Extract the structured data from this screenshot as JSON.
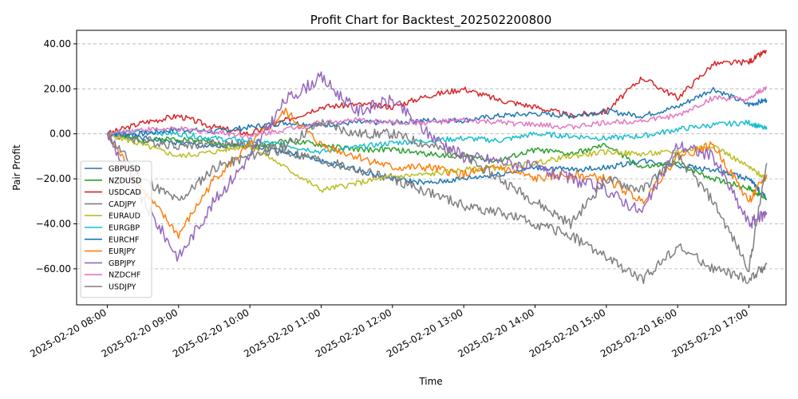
{
  "chart_data": {
    "type": "line",
    "title": "Profit Chart for Backtest_202502200800",
    "xlabel": "Time",
    "ylabel": "Pair Profit",
    "x_ticks": [
      "2025-02-20 08:00",
      "2025-02-20 09:00",
      "2025-02-20 10:00",
      "2025-02-20 11:00",
      "2025-02-20 12:00",
      "2025-02-20 13:00",
      "2025-02-20 14:00",
      "2025-02-20 15:00",
      "2025-02-20 16:00",
      "2025-02-20 17:00"
    ],
    "x": [
      "08:00",
      "08:30",
      "09:00",
      "09:30",
      "10:00",
      "10:30",
      "11:00",
      "11:30",
      "12:00",
      "12:30",
      "13:00",
      "13:30",
      "14:00",
      "14:30",
      "15:00",
      "15:30",
      "16:00",
      "16:30",
      "17:00",
      "17:15"
    ],
    "y_ticks": [
      "40.00",
      "20.00",
      "0.00",
      "−20.00",
      "−40.00",
      "−60.00"
    ],
    "y_tick_values": [
      40,
      20,
      0,
      -20,
      -40,
      -60
    ],
    "ylim": [
      -76,
      46
    ],
    "xlim_hours": [
      7.57,
      17.52
    ],
    "grid": "y-dashed",
    "legend_position": "lower-left",
    "series": [
      {
        "name": "GBPUSD",
        "color": "#1f77b4",
        "values": [
          0,
          -2,
          -4,
          -6,
          -5,
          -8,
          -12,
          -16,
          -20,
          -22,
          -20,
          -18,
          -15,
          -16,
          -15,
          -12,
          -14,
          -16,
          -20,
          -29
        ]
      },
      {
        "name": "NZDUSD",
        "color": "#2ca02c",
        "values": [
          0,
          -3,
          -2,
          -4,
          -6,
          -3,
          -5,
          -7,
          -7,
          -9,
          -10,
          -12,
          -7,
          -9,
          -5,
          -15,
          -13,
          -20,
          -24,
          -29
        ]
      },
      {
        "name": "USDCAD",
        "color": "#d62728",
        "values": [
          0,
          5,
          8,
          3,
          0,
          6,
          12,
          13,
          12,
          17,
          20,
          15,
          12,
          8,
          10,
          25,
          16,
          31,
          32,
          37
        ]
      },
      {
        "name": "CADJPY",
        "color": "#7f7f7f",
        "values": [
          0,
          -3,
          -5,
          -4,
          -5,
          -8,
          -12,
          -16,
          -20,
          -26,
          -32,
          -35,
          -40,
          -45,
          -55,
          -65,
          -50,
          -60,
          -65,
          -58
        ]
      },
      {
        "name": "EURAUD",
        "color": "#bcbd22",
        "values": [
          0,
          -5,
          -10,
          -8,
          -5,
          -15,
          -25,
          -22,
          -19,
          -18,
          -16,
          -15,
          -13,
          -10,
          -8,
          -9,
          -8,
          -5,
          -15,
          -20
        ]
      },
      {
        "name": "EURGBP",
        "color": "#17becf",
        "values": [
          0,
          1,
          0,
          -2,
          -3,
          -5,
          -8,
          -6,
          -4,
          -3,
          -2,
          -3,
          0,
          -1,
          -2,
          -1,
          2,
          4,
          5,
          2
        ]
      },
      {
        "name": "EURCHF",
        "color": "#1f77b4",
        "values": [
          0,
          0,
          2,
          1,
          3,
          5,
          4,
          5,
          5,
          6,
          6,
          8,
          9,
          8,
          10,
          8,
          12,
          20,
          13,
          15
        ]
      },
      {
        "name": "EURJPY",
        "color": "#ff7f0e",
        "values": [
          0,
          -25,
          -45,
          -20,
          -5,
          10,
          -5,
          -10,
          -15,
          -15,
          -18,
          -15,
          -20,
          -18,
          -20,
          -30,
          -10,
          -5,
          -30,
          -18
        ]
      },
      {
        "name": "GBPJPY",
        "color": "#9467bd",
        "values": [
          0,
          -30,
          -55,
          -30,
          -10,
          15,
          25,
          10,
          15,
          0,
          -10,
          -12,
          -15,
          -20,
          -25,
          -35,
          -5,
          -10,
          -40,
          -35
        ]
      },
      {
        "name": "NZDCHF",
        "color": "#e377c2",
        "values": [
          0,
          2,
          2,
          1,
          -1,
          2,
          5,
          6,
          5,
          5,
          6,
          5,
          4,
          3,
          5,
          6,
          8,
          16,
          15,
          21
        ]
      },
      {
        "name": "USDJPY",
        "color": "#7f7f7f",
        "values": [
          0,
          -20,
          -30,
          -15,
          -10,
          -5,
          5,
          0,
          0,
          -5,
          -10,
          -20,
          -30,
          -40,
          -20,
          -25,
          -10,
          -30,
          -60,
          -13
        ]
      }
    ]
  }
}
